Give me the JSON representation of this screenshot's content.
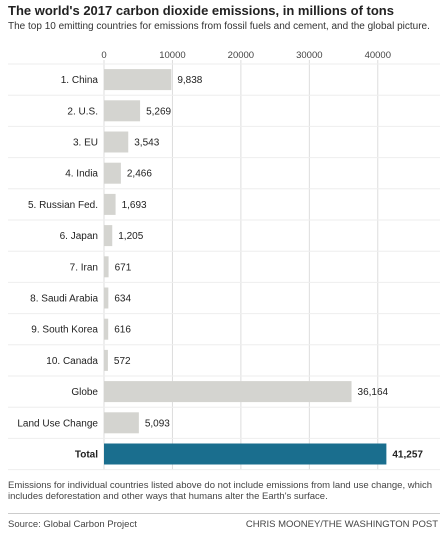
{
  "header": {
    "title": "The world's 2017 carbon dioxide emissions, in millions of tons",
    "subtitle": "The top 10 emitting countries for emissions from fossil fuels and cement, and the global picture."
  },
  "footer": {
    "note": "Emissions for individual countries listed above do not include emissions from land use change, which includes deforestation and other ways that humans alter the Earth's surface.",
    "source": "Source: Global Carbon Project",
    "credit": "CHRIS MOONEY/THE WASHINGTON POST"
  },
  "colors": {
    "bar": "#d4d4d0",
    "highlight": "#1a6e8e",
    "gridline": "#dddddd",
    "row_rule": "#eeeeee"
  },
  "chart_data": {
    "type": "bar",
    "orientation": "horizontal",
    "title": "The world's 2017 carbon dioxide emissions, in millions of tons",
    "categories": [
      "1. China",
      "2. U.S.",
      "3. EU",
      "4. India",
      "5. Russian Fed.",
      "6. Japan",
      "7. Iran",
      "8. Saudi Arabia",
      "9. South Korea",
      "10. Canada",
      "Globe",
      "Land Use Change",
      "Total"
    ],
    "values": [
      9838,
      5269,
      3543,
      2466,
      1693,
      1205,
      671,
      634,
      616,
      572,
      36164,
      5093,
      41257
    ],
    "value_labels": [
      "9,838",
      "5,269",
      "3,543",
      "2,466",
      "1,693",
      "1,205",
      "671",
      "634",
      "616",
      "572",
      "36,164",
      "5,093",
      "41,257"
    ],
    "highlighted": [
      "Total"
    ],
    "xlim": [
      0,
      45000
    ],
    "xticks": [
      0,
      10000,
      20000,
      30000,
      40000
    ],
    "xtick_labels": [
      "0",
      "10000",
      "20000",
      "30000",
      "40000"
    ],
    "xaxis_position": "top",
    "grid": true
  }
}
